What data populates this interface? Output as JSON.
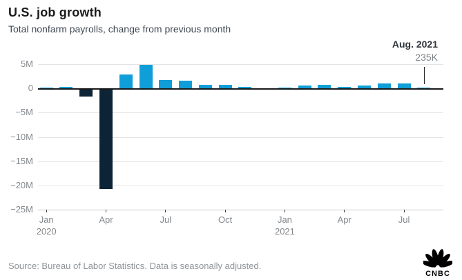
{
  "header": {
    "title": "U.S. job growth",
    "subtitle": "Total nonfarm payrolls, change from previous month"
  },
  "annotation": {
    "label": "Aug. 2021",
    "value": "235K"
  },
  "footer": {
    "source": "Source: Bureau of Labor Statistics. Data is seasonally adjusted.",
    "logo": "CNBC"
  },
  "chart_data": {
    "type": "bar",
    "title": "U.S. job growth",
    "subtitle": "Total nonfarm payrolls, change from previous month",
    "unit": "jobs added per month, thousands",
    "x": [
      "Jan 2020",
      "Feb 2020",
      "Mar 2020",
      "Apr 2020",
      "May 2020",
      "Jun 2020",
      "Jul 2020",
      "Aug 2020",
      "Sep 2020",
      "Oct 2020",
      "Nov 2020",
      "Dec 2020",
      "Jan 2021",
      "Feb 2021",
      "Mar 2021",
      "Apr 2021",
      "May 2021",
      "Jun 2021",
      "Jul 2021",
      "Aug 2021"
    ],
    "values_thousands": [
      214,
      289,
      -1683,
      -20679,
      2833,
      4846,
      1726,
      1583,
      716,
      680,
      264,
      -306,
      233,
      536,
      785,
      269,
      614,
      962,
      1053,
      235
    ],
    "ylim_millions": [
      -25,
      5
    ],
    "grid": true,
    "legend": "none",
    "y_ticks": [
      {
        "value_millions": 5,
        "label": "5M"
      },
      {
        "value_millions": 0,
        "label": "0"
      },
      {
        "value_millions": -5,
        "label": "−5M"
      },
      {
        "value_millions": -10,
        "label": "−10M"
      },
      {
        "value_millions": -15,
        "label": "−15M"
      },
      {
        "value_millions": -20,
        "label": "−20M"
      },
      {
        "value_millions": -25,
        "label": "−25M"
      }
    ],
    "x_ticks": [
      {
        "month_index": 0,
        "label": "Jan",
        "year": "2020"
      },
      {
        "month_index": 3,
        "label": "Apr"
      },
      {
        "month_index": 6,
        "label": "Jul"
      },
      {
        "month_index": 9,
        "label": "Oct"
      },
      {
        "month_index": 12,
        "label": "Jan",
        "year": "2021"
      },
      {
        "month_index": 15,
        "label": "Apr"
      },
      {
        "month_index": 18,
        "label": "Jul"
      }
    ],
    "annotation": {
      "label": "Aug. 2021",
      "value": "235K",
      "month_index": 19
    },
    "colors": {
      "positive": "#0f9ed8",
      "negative": "#0c2435"
    }
  }
}
